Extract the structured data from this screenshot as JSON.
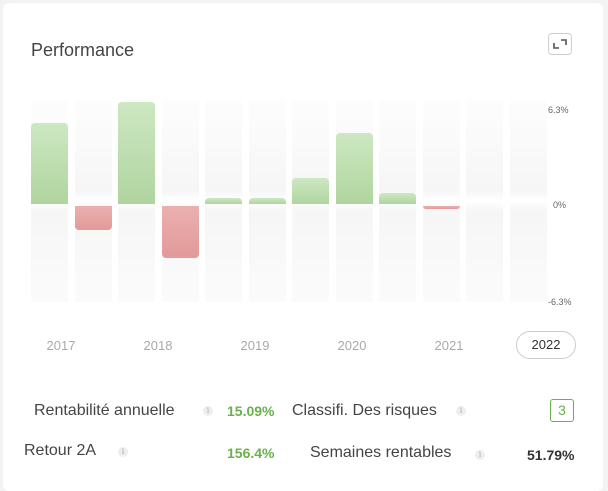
{
  "header": {
    "title": "Performance",
    "expand_icon": "expand-icon"
  },
  "chart_data": {
    "type": "bar",
    "title": "Performance",
    "categories": [
      "2017 H1",
      "2017 H2",
      "2018 H1",
      "2018 H2",
      "2019 H1",
      "2019 H2",
      "2020 H1",
      "2020 H2",
      "2021 H1",
      "2021 H2",
      "2022 H1",
      "2022 H2"
    ],
    "values": [
      5.0,
      -1.5,
      6.3,
      -3.2,
      0.4,
      0.4,
      1.6,
      4.4,
      0.7,
      -0.2,
      0,
      0
    ],
    "year_labels": [
      "2017",
      "2018",
      "2019",
      "2020",
      "2021",
      "2022"
    ],
    "selected_year": "2022",
    "yticks": [
      "6.3%",
      "0%",
      "-6.3%"
    ],
    "ylim": [
      -6.3,
      6.3
    ],
    "xlabel": "",
    "ylabel": "",
    "colors": {
      "positive": "#b8dbaa",
      "negative": "#e6a3a3"
    }
  },
  "stats": {
    "annual_return": {
      "label": "Rentabilité annuelle",
      "value": "15.09%"
    },
    "risk_class": {
      "label": "Classifi. Des risques",
      "value": "3"
    },
    "return_2y": {
      "label": "Retour 2A",
      "value": "156.4%"
    },
    "profitable_weeks": {
      "label": "Semaines rentables",
      "value": "51.79%"
    },
    "info_glyph": "i"
  }
}
